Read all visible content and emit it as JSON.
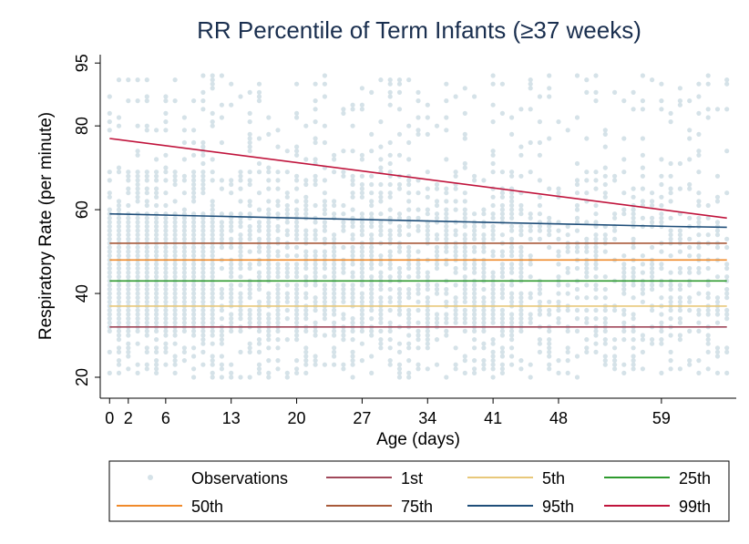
{
  "chart_data": {
    "type": "scatter",
    "title": "RR Percentile of Term Infants (≥37 weeks)",
    "xlabel": "Age (days)",
    "ylabel": "Respiratory Rate (per minute)",
    "xlim": [
      -1,
      67
    ],
    "ylim": [
      15,
      97
    ],
    "x_ticks": [
      0,
      2,
      6,
      13,
      20,
      27,
      34,
      41,
      48,
      59
    ],
    "y_ticks": [
      20,
      40,
      60,
      80,
      95
    ],
    "grid": false,
    "legend_position": "bottom",
    "observations": {
      "name": "Observations",
      "color": "#d5e2e8",
      "x_range": [
        0,
        66
      ],
      "y_range": [
        20,
        92
      ]
    },
    "series": [
      {
        "name": "1st",
        "color": "#a0485a",
        "x": [
          0,
          66
        ],
        "y": [
          32,
          32
        ]
      },
      {
        "name": "5th",
        "color": "#e8c87a",
        "x": [
          0,
          66
        ],
        "y": [
          37,
          37
        ]
      },
      {
        "name": "25th",
        "color": "#2e9a2e",
        "x": [
          0,
          66
        ],
        "y": [
          43,
          43
        ]
      },
      {
        "name": "50th",
        "color": "#f08a2a",
        "x": [
          0,
          66
        ],
        "y": [
          48,
          48
        ]
      },
      {
        "name": "75th",
        "color": "#a85a3a",
        "x": [
          0,
          66
        ],
        "y": [
          52,
          52
        ]
      },
      {
        "name": "95th",
        "color": "#1f4e79",
        "x": [
          0,
          10,
          20,
          30,
          40,
          50,
          60,
          66
        ],
        "y": [
          59,
          58.5,
          58,
          57.5,
          57,
          56.5,
          56,
          55.8
        ]
      },
      {
        "name": "99th",
        "color": "#c0143c",
        "x": [
          0,
          66
        ],
        "y": [
          77,
          58
        ]
      }
    ],
    "legend": [
      {
        "label": "Observations",
        "kind": "marker",
        "color": "#d5e2e8"
      },
      {
        "label": "1st",
        "kind": "line",
        "color": "#a0485a"
      },
      {
        "label": "5th",
        "kind": "line",
        "color": "#e8c87a"
      },
      {
        "label": "25th",
        "kind": "line",
        "color": "#2e9a2e"
      },
      {
        "label": "50th",
        "kind": "line",
        "color": "#f08a2a"
      },
      {
        "label": "75th",
        "kind": "line",
        "color": "#a85a3a"
      },
      {
        "label": "95th",
        "kind": "line",
        "color": "#1f4e79"
      },
      {
        "label": "99th",
        "kind": "line",
        "color": "#c0143c"
      }
    ]
  }
}
